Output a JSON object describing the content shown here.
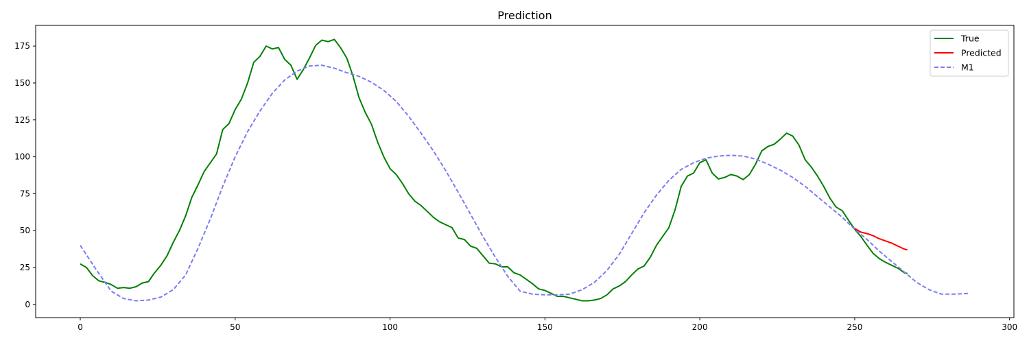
{
  "chart_data": {
    "type": "line",
    "title": "Prediction",
    "xlabel": "",
    "ylabel": "",
    "xlim": [
      -14.4,
      301.4
    ],
    "ylim": [
      -8.9,
      189
    ],
    "x_ticks": [
      0,
      50,
      100,
      150,
      200,
      250,
      300
    ],
    "y_ticks": [
      0,
      25,
      50,
      75,
      100,
      125,
      150,
      175
    ],
    "grid": false,
    "legend_position": "top-right",
    "series": [
      {
        "name": "True",
        "color": "#008000",
        "style": "solid",
        "points": [
          [
            0,
            27.5
          ],
          [
            2,
            25
          ],
          [
            4,
            19.5
          ],
          [
            6,
            16
          ],
          [
            8,
            15
          ],
          [
            10,
            13.5
          ],
          [
            12,
            11
          ],
          [
            14,
            11.5
          ],
          [
            16,
            11
          ],
          [
            18,
            12
          ],
          [
            20,
            14.5
          ],
          [
            22,
            15.5
          ],
          [
            24,
            21.5
          ],
          [
            26,
            26.5
          ],
          [
            28,
            33
          ],
          [
            30,
            42
          ],
          [
            32,
            50
          ],
          [
            34,
            60
          ],
          [
            36,
            72.5
          ],
          [
            38,
            81
          ],
          [
            40,
            90
          ],
          [
            42,
            96
          ],
          [
            44,
            102
          ],
          [
            46,
            118.5
          ],
          [
            48,
            122.5
          ],
          [
            50,
            132
          ],
          [
            52,
            139
          ],
          [
            54,
            150
          ],
          [
            56,
            164
          ],
          [
            58,
            168
          ],
          [
            60,
            175
          ],
          [
            62,
            173
          ],
          [
            64,
            174
          ],
          [
            66,
            166
          ],
          [
            68,
            162
          ],
          [
            70,
            152.5
          ],
          [
            72,
            159
          ],
          [
            74,
            167
          ],
          [
            76,
            175.5
          ],
          [
            78,
            179
          ],
          [
            80,
            178
          ],
          [
            82,
            179.5
          ],
          [
            84,
            174
          ],
          [
            86,
            167
          ],
          [
            88,
            155
          ],
          [
            90,
            140
          ],
          [
            92,
            130
          ],
          [
            94,
            122
          ],
          [
            96,
            110
          ],
          [
            98,
            100
          ],
          [
            100,
            92
          ],
          [
            102,
            88
          ],
          [
            104,
            82
          ],
          [
            106,
            75
          ],
          [
            108,
            70
          ],
          [
            110,
            67
          ],
          [
            112,
            63
          ],
          [
            114,
            59
          ],
          [
            116,
            56
          ],
          [
            118,
            54
          ],
          [
            120,
            52
          ],
          [
            122,
            45
          ],
          [
            124,
            44
          ],
          [
            126,
            39.5
          ],
          [
            128,
            38
          ],
          [
            130,
            33
          ],
          [
            132,
            28
          ],
          [
            134,
            27.5
          ],
          [
            136,
            25.5
          ],
          [
            138,
            25.5
          ],
          [
            140,
            21.5
          ],
          [
            142,
            20
          ],
          [
            144,
            17
          ],
          [
            146,
            14
          ],
          [
            148,
            10.5
          ],
          [
            150,
            9.5
          ],
          [
            152,
            7.5
          ],
          [
            154,
            5.5
          ],
          [
            156,
            5.5
          ],
          [
            158,
            4.5
          ],
          [
            160,
            3.5
          ],
          [
            162,
            2.5
          ],
          [
            164,
            2.5
          ],
          [
            166,
            3
          ],
          [
            168,
            4
          ],
          [
            170,
            6.5
          ],
          [
            172,
            10.5
          ],
          [
            174,
            12.5
          ],
          [
            176,
            15.5
          ],
          [
            178,
            20
          ],
          [
            180,
            24
          ],
          [
            182,
            26
          ],
          [
            184,
            32
          ],
          [
            186,
            40
          ],
          [
            188,
            46
          ],
          [
            190,
            52
          ],
          [
            192,
            64
          ],
          [
            194,
            80
          ],
          [
            196,
            87
          ],
          [
            198,
            89
          ],
          [
            200,
            96
          ],
          [
            202,
            98
          ],
          [
            204,
            89
          ],
          [
            206,
            85
          ],
          [
            208,
            86
          ],
          [
            210,
            88
          ],
          [
            212,
            87
          ],
          [
            214,
            84.5
          ],
          [
            216,
            88
          ],
          [
            218,
            95
          ],
          [
            220,
            104
          ],
          [
            222,
            107
          ],
          [
            224,
            108.5
          ],
          [
            226,
            112
          ],
          [
            228,
            116
          ],
          [
            230,
            114
          ],
          [
            232,
            108
          ],
          [
            234,
            98
          ],
          [
            236,
            93
          ],
          [
            238,
            87
          ],
          [
            240,
            80
          ],
          [
            242,
            72
          ],
          [
            244,
            66
          ],
          [
            246,
            63.5
          ],
          [
            248,
            57
          ],
          [
            250,
            51
          ],
          [
            252,
            46
          ],
          [
            254,
            40
          ],
          [
            256,
            34.5
          ],
          [
            258,
            31
          ],
          [
            260,
            28.5
          ],
          [
            262,
            26.5
          ],
          [
            264,
            24.5
          ],
          [
            266,
            21.5
          ],
          [
            267,
            21
          ]
        ]
      },
      {
        "name": "Predicted",
        "color": "#ff0000",
        "style": "solid",
        "points": [
          [
            250,
            51.5
          ],
          [
            252,
            49
          ],
          [
            254,
            48
          ],
          [
            256,
            46.5
          ],
          [
            258,
            44.5
          ],
          [
            260,
            43
          ],
          [
            262,
            41.5
          ],
          [
            264,
            39.5
          ],
          [
            266,
            37.5
          ],
          [
            267,
            37
          ]
        ]
      },
      {
        "name": "M1",
        "color": "#7b7bf3",
        "style": "dashed",
        "points": [
          [
            0,
            40
          ],
          [
            5,
            24
          ],
          [
            10,
            9
          ],
          [
            14,
            4
          ],
          [
            18,
            2.5
          ],
          [
            22,
            3
          ],
          [
            26,
            5
          ],
          [
            30,
            10
          ],
          [
            34,
            20
          ],
          [
            38,
            38
          ],
          [
            42,
            58
          ],
          [
            46,
            80
          ],
          [
            50,
            100
          ],
          [
            54,
            117
          ],
          [
            58,
            131
          ],
          [
            62,
            143
          ],
          [
            66,
            152
          ],
          [
            70,
            158
          ],
          [
            74,
            161.5
          ],
          [
            78,
            162
          ],
          [
            82,
            160
          ],
          [
            86,
            157
          ],
          [
            90,
            154.5
          ],
          [
            94,
            150.5
          ],
          [
            98,
            145
          ],
          [
            102,
            137.5
          ],
          [
            106,
            127.5
          ],
          [
            110,
            116
          ],
          [
            114,
            104
          ],
          [
            118,
            90.5
          ],
          [
            122,
            76
          ],
          [
            126,
            61
          ],
          [
            130,
            46
          ],
          [
            134,
            32
          ],
          [
            138,
            19
          ],
          [
            142,
            9
          ],
          [
            146,
            7
          ],
          [
            150,
            6.5
          ],
          [
            154,
            6.5
          ],
          [
            158,
            7
          ],
          [
            162,
            10
          ],
          [
            166,
            15
          ],
          [
            170,
            23
          ],
          [
            174,
            34
          ],
          [
            178,
            48
          ],
          [
            182,
            62
          ],
          [
            186,
            74
          ],
          [
            190,
            84
          ],
          [
            194,
            91.5
          ],
          [
            198,
            96
          ],
          [
            202,
            99
          ],
          [
            206,
            100.5
          ],
          [
            210,
            101
          ],
          [
            214,
            100.5
          ],
          [
            218,
            98.5
          ],
          [
            222,
            95
          ],
          [
            226,
            91
          ],
          [
            230,
            86
          ],
          [
            234,
            80
          ],
          [
            238,
            73
          ],
          [
            242,
            66
          ],
          [
            246,
            59
          ],
          [
            250,
            51
          ],
          [
            254,
            44
          ],
          [
            258,
            36
          ],
          [
            262,
            29
          ],
          [
            266,
            22
          ],
          [
            270,
            15
          ],
          [
            274,
            10
          ],
          [
            278,
            7
          ],
          [
            282,
            7
          ],
          [
            287,
            7.5
          ]
        ]
      }
    ]
  }
}
